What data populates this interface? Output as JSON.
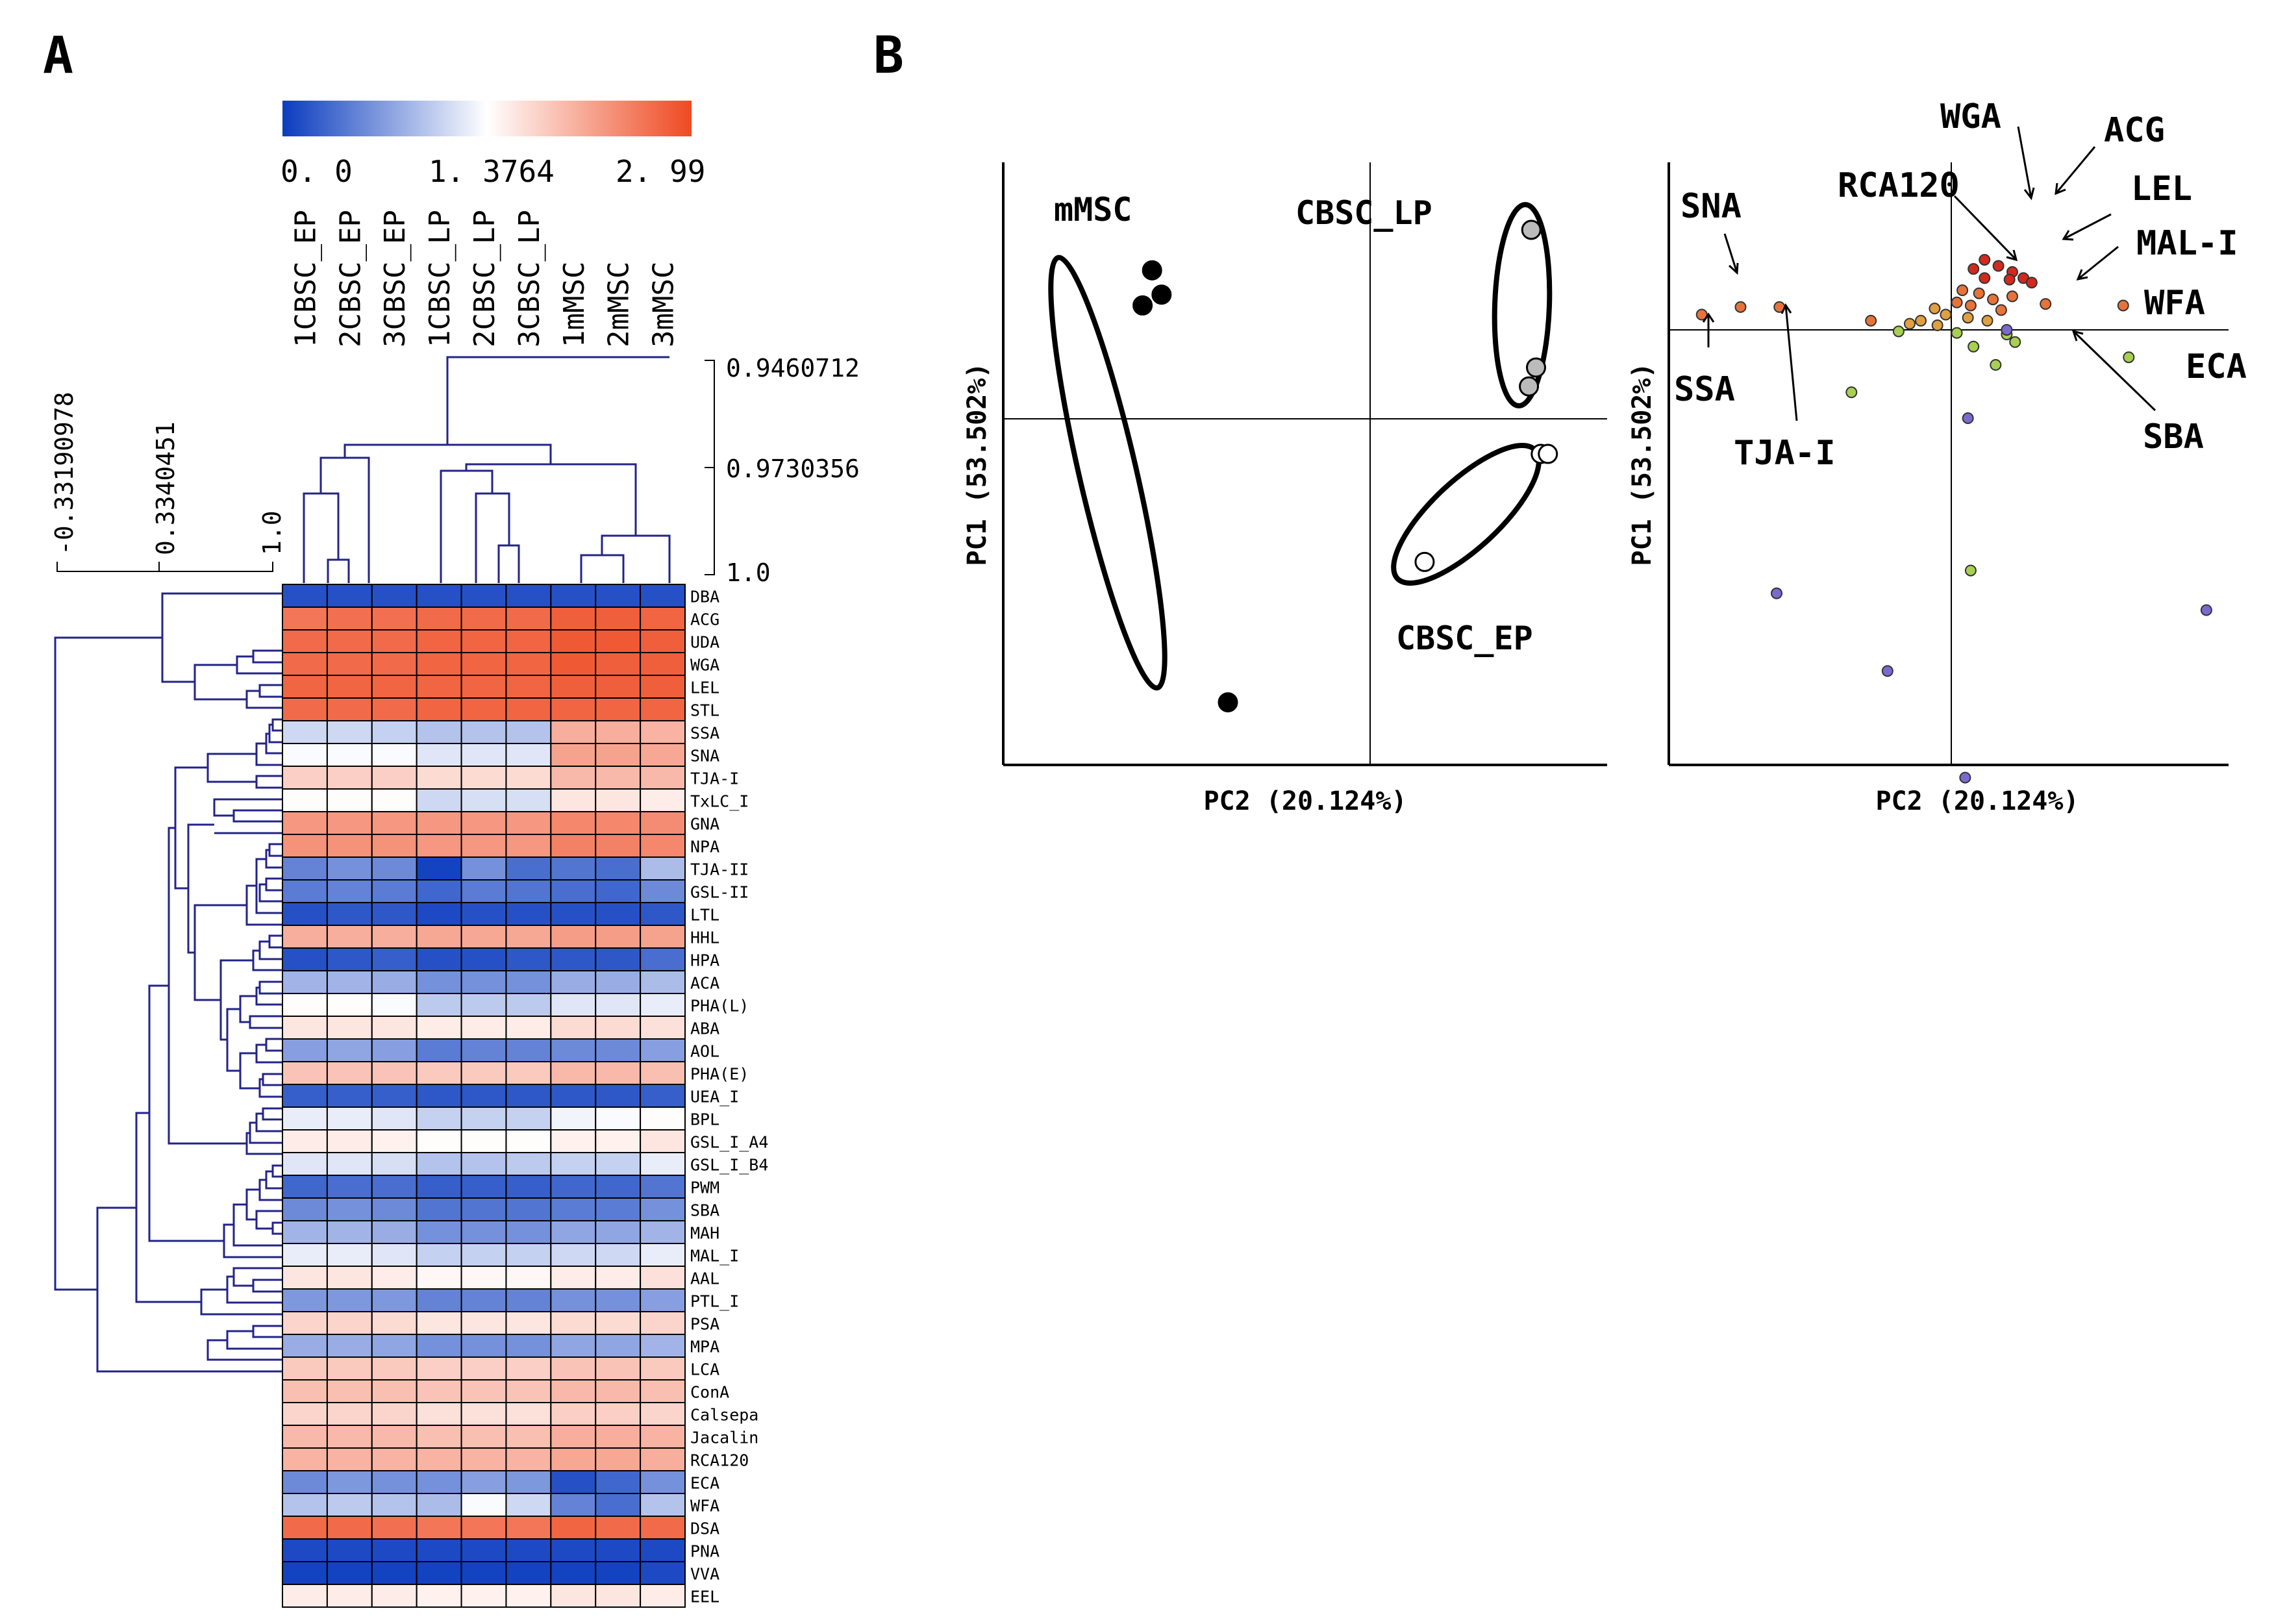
{
  "panels": [
    {
      "letter": "A"
    },
    {
      "letter": "B"
    }
  ],
  "chart_data": [
    {
      "type": "heatmap",
      "title": "",
      "colorbar": {
        "min_label": "0. 0",
        "mid_label": "1. 3764",
        "max_label": "2. 99",
        "min": 0.0,
        "mid": 1.3764,
        "max": 2.99,
        "colors": {
          "low": "#0b3cbf",
          "mid": "#ffffff",
          "high": "#ee4a22"
        }
      },
      "columns": [
        "1CBSC_EP",
        "2CBSC_EP",
        "3CBSC_EP",
        "1CBSC_LP",
        "2CBSC_LP",
        "3CBSC_LP",
        "1mMSC",
        "2mMSC",
        "3mMSC"
      ],
      "rows": [
        "DBA",
        "ACG",
        "UDA",
        "WGA",
        "LEL",
        "STL",
        "SSA",
        "SNA",
        "TJA-I",
        "TxLC_I",
        "GNA",
        "NPA",
        "TJA-II",
        "GSL-II",
        "LTL",
        "HHL",
        "HPA",
        "ACA",
        "PHA(L)",
        "ABA",
        "AOL",
        "PHA(E)",
        "UEA_I",
        "BPL",
        "GSL_I_A4",
        "GSL_I_B4",
        "PWM",
        "SBA",
        "MAH",
        "MAL_I",
        "AAL",
        "PTL_I",
        "PSA",
        "MPA",
        "LCA",
        "ConA",
        "Calsepa",
        "Jacalin",
        "RCA120",
        "ECA",
        "WFA",
        "DSA",
        "PNA",
        "VVA",
        "EEL"
      ],
      "values": [
        [
          0.15,
          0.15,
          0.15,
          0.15,
          0.15,
          0.15,
          0.15,
          0.15,
          0.15
        ],
        [
          2.6,
          2.65,
          2.65,
          2.7,
          2.7,
          2.7,
          2.8,
          2.8,
          2.75
        ],
        [
          2.7,
          2.7,
          2.7,
          2.75,
          2.75,
          2.75,
          2.85,
          2.85,
          2.8
        ],
        [
          2.7,
          2.7,
          2.7,
          2.75,
          2.75,
          2.75,
          2.85,
          2.8,
          2.8
        ],
        [
          2.75,
          2.75,
          2.75,
          2.75,
          2.75,
          2.75,
          2.8,
          2.8,
          2.8
        ],
        [
          2.7,
          2.7,
          2.7,
          2.75,
          2.75,
          2.75,
          2.75,
          2.75,
          2.75
        ],
        [
          1.1,
          1.1,
          1.05,
          0.95,
          0.95,
          0.95,
          2.1,
          2.1,
          2.05
        ],
        [
          1.35,
          1.35,
          1.35,
          1.2,
          1.2,
          1.2,
          2.2,
          2.2,
          2.15
        ],
        [
          1.8,
          1.8,
          1.8,
          1.7,
          1.7,
          1.7,
          2.0,
          2.0,
          2.0
        ],
        [
          1.4,
          1.4,
          1.4,
          1.1,
          1.15,
          1.15,
          1.6,
          1.6,
          1.55
        ],
        [
          2.3,
          2.3,
          2.3,
          2.3,
          2.3,
          2.3,
          2.45,
          2.45,
          2.4
        ],
        [
          2.35,
          2.35,
          2.35,
          2.3,
          2.3,
          2.3,
          2.5,
          2.5,
          2.45
        ],
        [
          0.5,
          0.6,
          0.55,
          0.05,
          0.6,
          0.35,
          0.4,
          0.35,
          0.9
        ],
        [
          0.45,
          0.5,
          0.45,
          0.3,
          0.45,
          0.4,
          0.35,
          0.3,
          0.55
        ],
        [
          0.15,
          0.2,
          0.2,
          0.1,
          0.15,
          0.15,
          0.15,
          0.15,
          0.2
        ],
        [
          2.1,
          2.1,
          2.1,
          2.15,
          2.15,
          2.15,
          2.25,
          2.25,
          2.2
        ],
        [
          0.15,
          0.2,
          0.25,
          0.15,
          0.15,
          0.2,
          0.2,
          0.2,
          0.35
        ],
        [
          0.85,
          0.85,
          0.8,
          0.6,
          0.6,
          0.6,
          0.8,
          0.8,
          0.9
        ],
        [
          1.4,
          1.4,
          1.35,
          1.0,
          1.0,
          1.0,
          1.2,
          1.2,
          1.25
        ],
        [
          1.6,
          1.6,
          1.6,
          1.55,
          1.55,
          1.55,
          1.7,
          1.7,
          1.65
        ],
        [
          0.7,
          0.75,
          0.7,
          0.45,
          0.5,
          0.5,
          0.55,
          0.55,
          0.7
        ],
        [
          1.9,
          1.9,
          1.9,
          1.85,
          1.85,
          1.85,
          2.0,
          2.0,
          1.95
        ],
        [
          0.25,
          0.25,
          0.25,
          0.2,
          0.2,
          0.2,
          0.2,
          0.2,
          0.25
        ],
        [
          1.25,
          1.25,
          1.2,
          1.05,
          1.05,
          1.05,
          1.3,
          1.35,
          1.4
        ],
        [
          1.55,
          1.55,
          1.5,
          1.4,
          1.4,
          1.4,
          1.5,
          1.5,
          1.6
        ],
        [
          1.2,
          1.2,
          1.15,
          0.95,
          0.95,
          1.0,
          1.05,
          1.05,
          1.25
        ],
        [
          0.3,
          0.35,
          0.35,
          0.25,
          0.25,
          0.25,
          0.3,
          0.3,
          0.4
        ],
        [
          0.55,
          0.6,
          0.55,
          0.4,
          0.4,
          0.4,
          0.45,
          0.45,
          0.6
        ],
        [
          0.85,
          0.85,
          0.8,
          0.6,
          0.6,
          0.6,
          0.75,
          0.75,
          0.85
        ],
        [
          1.25,
          1.25,
          1.2,
          1.05,
          1.05,
          1.05,
          1.1,
          1.1,
          1.25
        ],
        [
          1.6,
          1.6,
          1.55,
          1.45,
          1.45,
          1.45,
          1.55,
          1.55,
          1.65
        ],
        [
          0.65,
          0.65,
          0.65,
          0.5,
          0.5,
          0.5,
          0.6,
          0.6,
          0.7
        ],
        [
          1.75,
          1.75,
          1.7,
          1.6,
          1.6,
          1.6,
          1.7,
          1.7,
          1.75
        ],
        [
          0.8,
          0.8,
          0.75,
          0.6,
          0.6,
          0.6,
          0.75,
          0.75,
          0.85
        ],
        [
          1.85,
          1.85,
          1.85,
          1.8,
          1.8,
          1.8,
          1.9,
          1.9,
          1.85
        ],
        [
          1.95,
          1.95,
          1.95,
          1.9,
          1.9,
          1.9,
          2.0,
          2.0,
          1.95
        ],
        [
          1.75,
          1.75,
          1.75,
          1.65,
          1.65,
          1.65,
          1.8,
          1.8,
          1.75
        ],
        [
          2.0,
          2.0,
          2.0,
          1.95,
          1.95,
          1.95,
          2.1,
          2.1,
          2.05
        ],
        [
          2.05,
          2.05,
          2.05,
          2.05,
          2.05,
          2.05,
          2.15,
          2.15,
          2.1
        ],
        [
          0.55,
          0.65,
          0.6,
          0.6,
          0.7,
          0.65,
          0.15,
          0.3,
          0.6
        ],
        [
          0.95,
          1.0,
          0.95,
          0.9,
          1.35,
          1.1,
          0.5,
          0.35,
          0.95
        ],
        [
          2.7,
          2.7,
          2.65,
          2.6,
          2.6,
          2.6,
          2.75,
          2.7,
          2.7
        ],
        [
          0.1,
          0.1,
          0.1,
          0.1,
          0.1,
          0.1,
          0.1,
          0.1,
          0.1
        ],
        [
          0.05,
          0.05,
          0.05,
          0.05,
          0.05,
          0.05,
          0.05,
          0.05,
          0.1
        ],
        [
          1.55,
          1.55,
          1.55,
          1.5,
          1.5,
          1.5,
          1.6,
          1.6,
          1.55
        ]
      ],
      "column_dendrogram_scale": [
        "0.9460712",
        "0.9730356",
        "1.0"
      ],
      "row_dendrogram_scale": [
        "-0.33190978",
        "0.3340451",
        "1.0"
      ]
    },
    {
      "type": "scatter",
      "title": "",
      "xlabel": "PC2 (20.124%)",
      "ylabel": "PC1 (53.502%)",
      "groups": [
        {
          "name": "mMSC",
          "color": "#000000",
          "points": [
            [
              -0.92,
              0.55
            ],
            [
              -0.88,
              0.46
            ],
            [
              -0.96,
              0.42
            ],
            [
              -0.6,
              -1.05
            ]
          ]
        },
        {
          "name": "CBSC_LP",
          "color": "#bbbbbb",
          "points": [
            [
              0.68,
              0.7
            ],
            [
              0.7,
              0.19
            ],
            [
              0.67,
              0.12
            ]
          ]
        },
        {
          "name": "CBSC_EP",
          "color": "#ffffff",
          "points": [
            [
              0.72,
              -0.13
            ],
            [
              0.75,
              -0.13
            ],
            [
              0.23,
              -0.53
            ]
          ]
        }
      ],
      "xlim": [
        -1.0,
        1.0
      ],
      "ylim": [
        -1.2,
        0.95
      ]
    },
    {
      "type": "scatter",
      "title": "",
      "xlabel": "PC2 (20.124%)",
      "ylabel": "PC1 (53.502%)",
      "points": [
        {
          "x": 0.12,
          "y": 0.46,
          "c": "#d22a1e"
        },
        {
          "x": 0.17,
          "y": 0.42,
          "c": "#d22a1e"
        },
        {
          "x": 0.22,
          "y": 0.38,
          "c": "#d22a1e"
        },
        {
          "x": 0.08,
          "y": 0.4,
          "c": "#d22a1e"
        },
        {
          "x": 0.26,
          "y": 0.34,
          "c": "#d22a1e"
        },
        {
          "x": 0.21,
          "y": 0.33,
          "c": "#d22a1e"
        },
        {
          "x": 0.12,
          "y": 0.34,
          "c": "#d22a1e"
        },
        {
          "x": 0.29,
          "y": 0.31,
          "c": "#d22a1e"
        },
        {
          "x": 0.04,
          "y": 0.26,
          "c": "#e8733a"
        },
        {
          "x": 0.1,
          "y": 0.24,
          "c": "#e8733a"
        },
        {
          "x": 0.15,
          "y": 0.2,
          "c": "#e8733a"
        },
        {
          "x": 0.22,
          "y": 0.22,
          "c": "#e8733a"
        },
        {
          "x": 0.02,
          "y": 0.18,
          "c": "#e8733a"
        },
        {
          "x": 0.07,
          "y": 0.16,
          "c": "#e8733a"
        },
        {
          "x": 0.18,
          "y": 0.13,
          "c": "#e8733a"
        },
        {
          "x": 0.34,
          "y": 0.17,
          "c": "#e8733a"
        },
        {
          "x": 0.62,
          "y": 0.16,
          "c": "#e8733a"
        },
        {
          "x": -0.9,
          "y": 0.1,
          "c": "#e8733a"
        },
        {
          "x": -0.76,
          "y": 0.15,
          "c": "#e8733a"
        },
        {
          "x": -0.62,
          "y": 0.15,
          "c": "#e8733a"
        },
        {
          "x": -0.29,
          "y": 0.06,
          "c": "#e8733a"
        },
        {
          "x": -0.06,
          "y": 0.14,
          "c": "#e0a040"
        },
        {
          "x": -0.02,
          "y": 0.1,
          "c": "#e0a040"
        },
        {
          "x": -0.11,
          "y": 0.06,
          "c": "#e0a040"
        },
        {
          "x": -0.15,
          "y": 0.04,
          "c": "#e0a040"
        },
        {
          "x": 0.06,
          "y": 0.08,
          "c": "#e0a040"
        },
        {
          "x": 0.13,
          "y": 0.06,
          "c": "#e0a040"
        },
        {
          "x": -0.05,
          "y": 0.03,
          "c": "#e0a040"
        },
        {
          "x": -0.19,
          "y": -0.01,
          "c": "#a8d050"
        },
        {
          "x": 0.02,
          "y": -0.02,
          "c": "#a8d050"
        },
        {
          "x": 0.2,
          "y": -0.03,
          "c": "#a8d050"
        },
        {
          "x": 0.08,
          "y": -0.11,
          "c": "#a8d050"
        },
        {
          "x": 0.23,
          "y": -0.08,
          "c": "#a8d050"
        },
        {
          "x": 0.16,
          "y": -0.23,
          "c": "#a8d050"
        },
        {
          "x": 0.64,
          "y": -0.18,
          "c": "#a8d050"
        },
        {
          "x": -0.36,
          "y": -0.41,
          "c": "#a8d050"
        },
        {
          "x": 0.07,
          "y": -1.58,
          "c": "#a8d050"
        },
        {
          "x": 0.2,
          "y": 0.0,
          "c": "#7a6ad0"
        },
        {
          "x": 0.06,
          "y": -0.58,
          "c": "#7a6ad0"
        },
        {
          "x": -0.63,
          "y": -1.73,
          "c": "#7a6ad0"
        },
        {
          "x": -0.23,
          "y": -2.24,
          "c": "#7a6ad0"
        },
        {
          "x": 0.05,
          "y": -2.94,
          "c": "#7a6ad0"
        },
        {
          "x": 0.92,
          "y": -1.84,
          "c": "#7a6ad0"
        }
      ],
      "annotations": [
        "WGA",
        "ACG",
        "RCA120",
        "LEL",
        "SNA",
        "MAL-I",
        "WFA",
        "ECA",
        "SSA",
        "TJA-I",
        "SBA"
      ],
      "xlim": [
        -1.0,
        1.0
      ],
      "ylim": [
        -3.2,
        1.1
      ]
    }
  ]
}
